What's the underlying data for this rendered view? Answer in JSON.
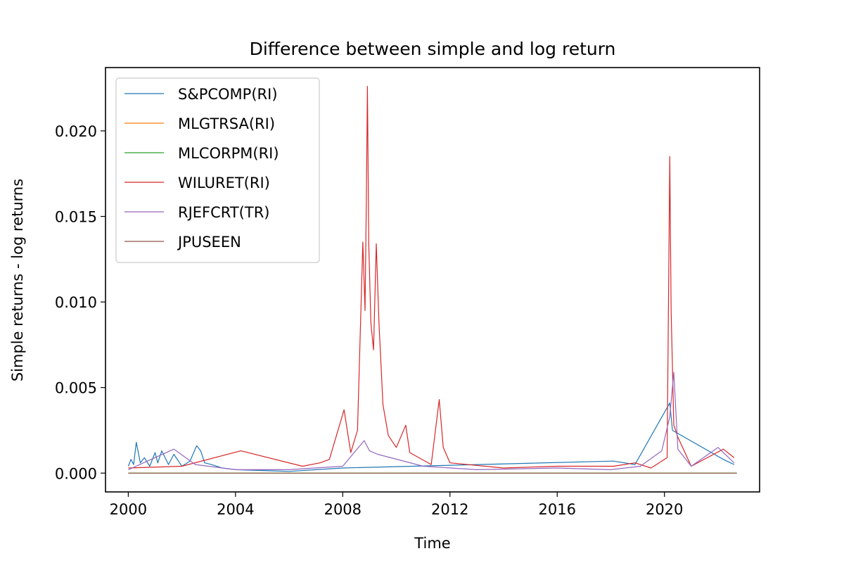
{
  "chart_data": {
    "type": "line",
    "title": "Difference between simple and log return",
    "xlabel": "Time",
    "ylabel": "Simple returns - log returns",
    "xlim": [
      1999.15,
      2023.55
    ],
    "ylim": [
      -0.0011,
      0.0237
    ],
    "x_ticks": [
      2000,
      2004,
      2008,
      2012,
      2016,
      2020
    ],
    "x_tick_labels": [
      "2000",
      "2004",
      "2008",
      "2012",
      "2016",
      "2020"
    ],
    "y_ticks": [
      0.0,
      0.005,
      0.01,
      0.015,
      0.02
    ],
    "y_tick_labels": [
      "0.000",
      "0.005",
      "0.010",
      "0.015",
      "0.020"
    ],
    "grid": false,
    "legend_position": "top-left",
    "series": [
      {
        "name": "S&PCOMP(RI)",
        "color": "#1f77b4",
        "points": [
          [
            2000.0,
            0.0004
          ],
          [
            2000.1,
            0.0008
          ],
          [
            2000.2,
            0.0005
          ],
          [
            2000.3,
            0.0018
          ],
          [
            2000.45,
            0.0006
          ],
          [
            2000.6,
            0.0009
          ],
          [
            2000.8,
            0.0004
          ],
          [
            2001.0,
            0.0012
          ],
          [
            2001.1,
            0.0006
          ],
          [
            2001.25,
            0.0013
          ],
          [
            2001.5,
            0.0005
          ],
          [
            2001.7,
            0.0011
          ],
          [
            2002.0,
            0.0004
          ],
          [
            2002.3,
            0.0007
          ],
          [
            2002.55,
            0.0016
          ],
          [
            2002.7,
            0.0013
          ],
          [
            2002.85,
            0.0006
          ],
          [
            2003.1,
            0.0005
          ],
          [
            2003.5,
            0.0003
          ],
          [
            2004.0,
            0.0002
          ],
          [
            2006.0,
            0.0001
          ],
          [
            2008.0,
            0.0003
          ],
          [
            2018.1,
            0.0007
          ],
          [
            2018.9,
            0.0005
          ],
          [
            2020.2,
            0.0041
          ],
          [
            2020.3,
            0.0025
          ],
          [
            2022.2,
            0.0008
          ],
          [
            2022.6,
            0.0005
          ]
        ]
      },
      {
        "name": "MLGTRSA(RI)",
        "color": "#ff7f0e",
        "points": [
          [
            2000.0,
            0.0
          ],
          [
            2022.7,
            0.0
          ]
        ]
      },
      {
        "name": "MLCORPM(RI)",
        "color": "#2ca02c",
        "points": [
          [
            2000.0,
            0.0
          ],
          [
            2022.7,
            0.0
          ]
        ]
      },
      {
        "name": "WILURET(RI)",
        "color": "#d62728",
        "points": [
          [
            2000.0,
            0.0003
          ],
          [
            2002.0,
            0.0004
          ],
          [
            2004.2,
            0.0013
          ],
          [
            2006.5,
            0.0004
          ],
          [
            2007.15,
            0.0006
          ],
          [
            2007.5,
            0.0008
          ],
          [
            2008.05,
            0.0037
          ],
          [
            2008.3,
            0.0012
          ],
          [
            2008.55,
            0.0025
          ],
          [
            2008.75,
            0.0135
          ],
          [
            2008.83,
            0.0095
          ],
          [
            2008.88,
            0.016
          ],
          [
            2008.92,
            0.0226
          ],
          [
            2008.97,
            0.0134
          ],
          [
            2009.05,
            0.0088
          ],
          [
            2009.15,
            0.0072
          ],
          [
            2009.25,
            0.0134
          ],
          [
            2009.35,
            0.0088
          ],
          [
            2009.5,
            0.004
          ],
          [
            2009.7,
            0.0022
          ],
          [
            2010.0,
            0.0015
          ],
          [
            2010.35,
            0.0028
          ],
          [
            2010.5,
            0.0012
          ],
          [
            2011.3,
            0.0005
          ],
          [
            2011.6,
            0.0043
          ],
          [
            2011.75,
            0.0015
          ],
          [
            2012.0,
            0.0006
          ],
          [
            2014.0,
            0.0003
          ],
          [
            2016.0,
            0.0004
          ],
          [
            2018.1,
            0.0004
          ],
          [
            2018.9,
            0.0006
          ],
          [
            2019.5,
            0.0003
          ],
          [
            2020.1,
            0.0009
          ],
          [
            2020.2,
            0.0185
          ],
          [
            2020.25,
            0.0095
          ],
          [
            2020.35,
            0.0028
          ],
          [
            2020.5,
            0.0021
          ],
          [
            2021.0,
            0.0004
          ],
          [
            2022.2,
            0.0014
          ],
          [
            2022.6,
            0.0009
          ]
        ]
      },
      {
        "name": "RJEFCRT(TR)",
        "color": "#9467bd",
        "points": [
          [
            2000.0,
            0.0002
          ],
          [
            2001.7,
            0.0014
          ],
          [
            2002.5,
            0.0005
          ],
          [
            2004.0,
            0.0002
          ],
          [
            2006.0,
            0.0002
          ],
          [
            2008.0,
            0.0004
          ],
          [
            2008.8,
            0.0019
          ],
          [
            2009.0,
            0.0013
          ],
          [
            2009.3,
            0.0011
          ],
          [
            2011.0,
            0.0004
          ],
          [
            2013.0,
            0.0002
          ],
          [
            2016.0,
            0.0003
          ],
          [
            2018.0,
            0.0002
          ],
          [
            2019.1,
            0.0004
          ],
          [
            2019.9,
            0.0013
          ],
          [
            2020.2,
            0.0033
          ],
          [
            2020.35,
            0.0059
          ],
          [
            2020.5,
            0.0014
          ],
          [
            2021.0,
            0.0004
          ],
          [
            2022.0,
            0.0015
          ],
          [
            2022.6,
            0.0006
          ]
        ]
      },
      {
        "name": "JPUSEEN",
        "color": "#8c564b",
        "points": [
          [
            2000.0,
            0.0
          ],
          [
            2022.7,
            0.0
          ]
        ]
      }
    ]
  }
}
